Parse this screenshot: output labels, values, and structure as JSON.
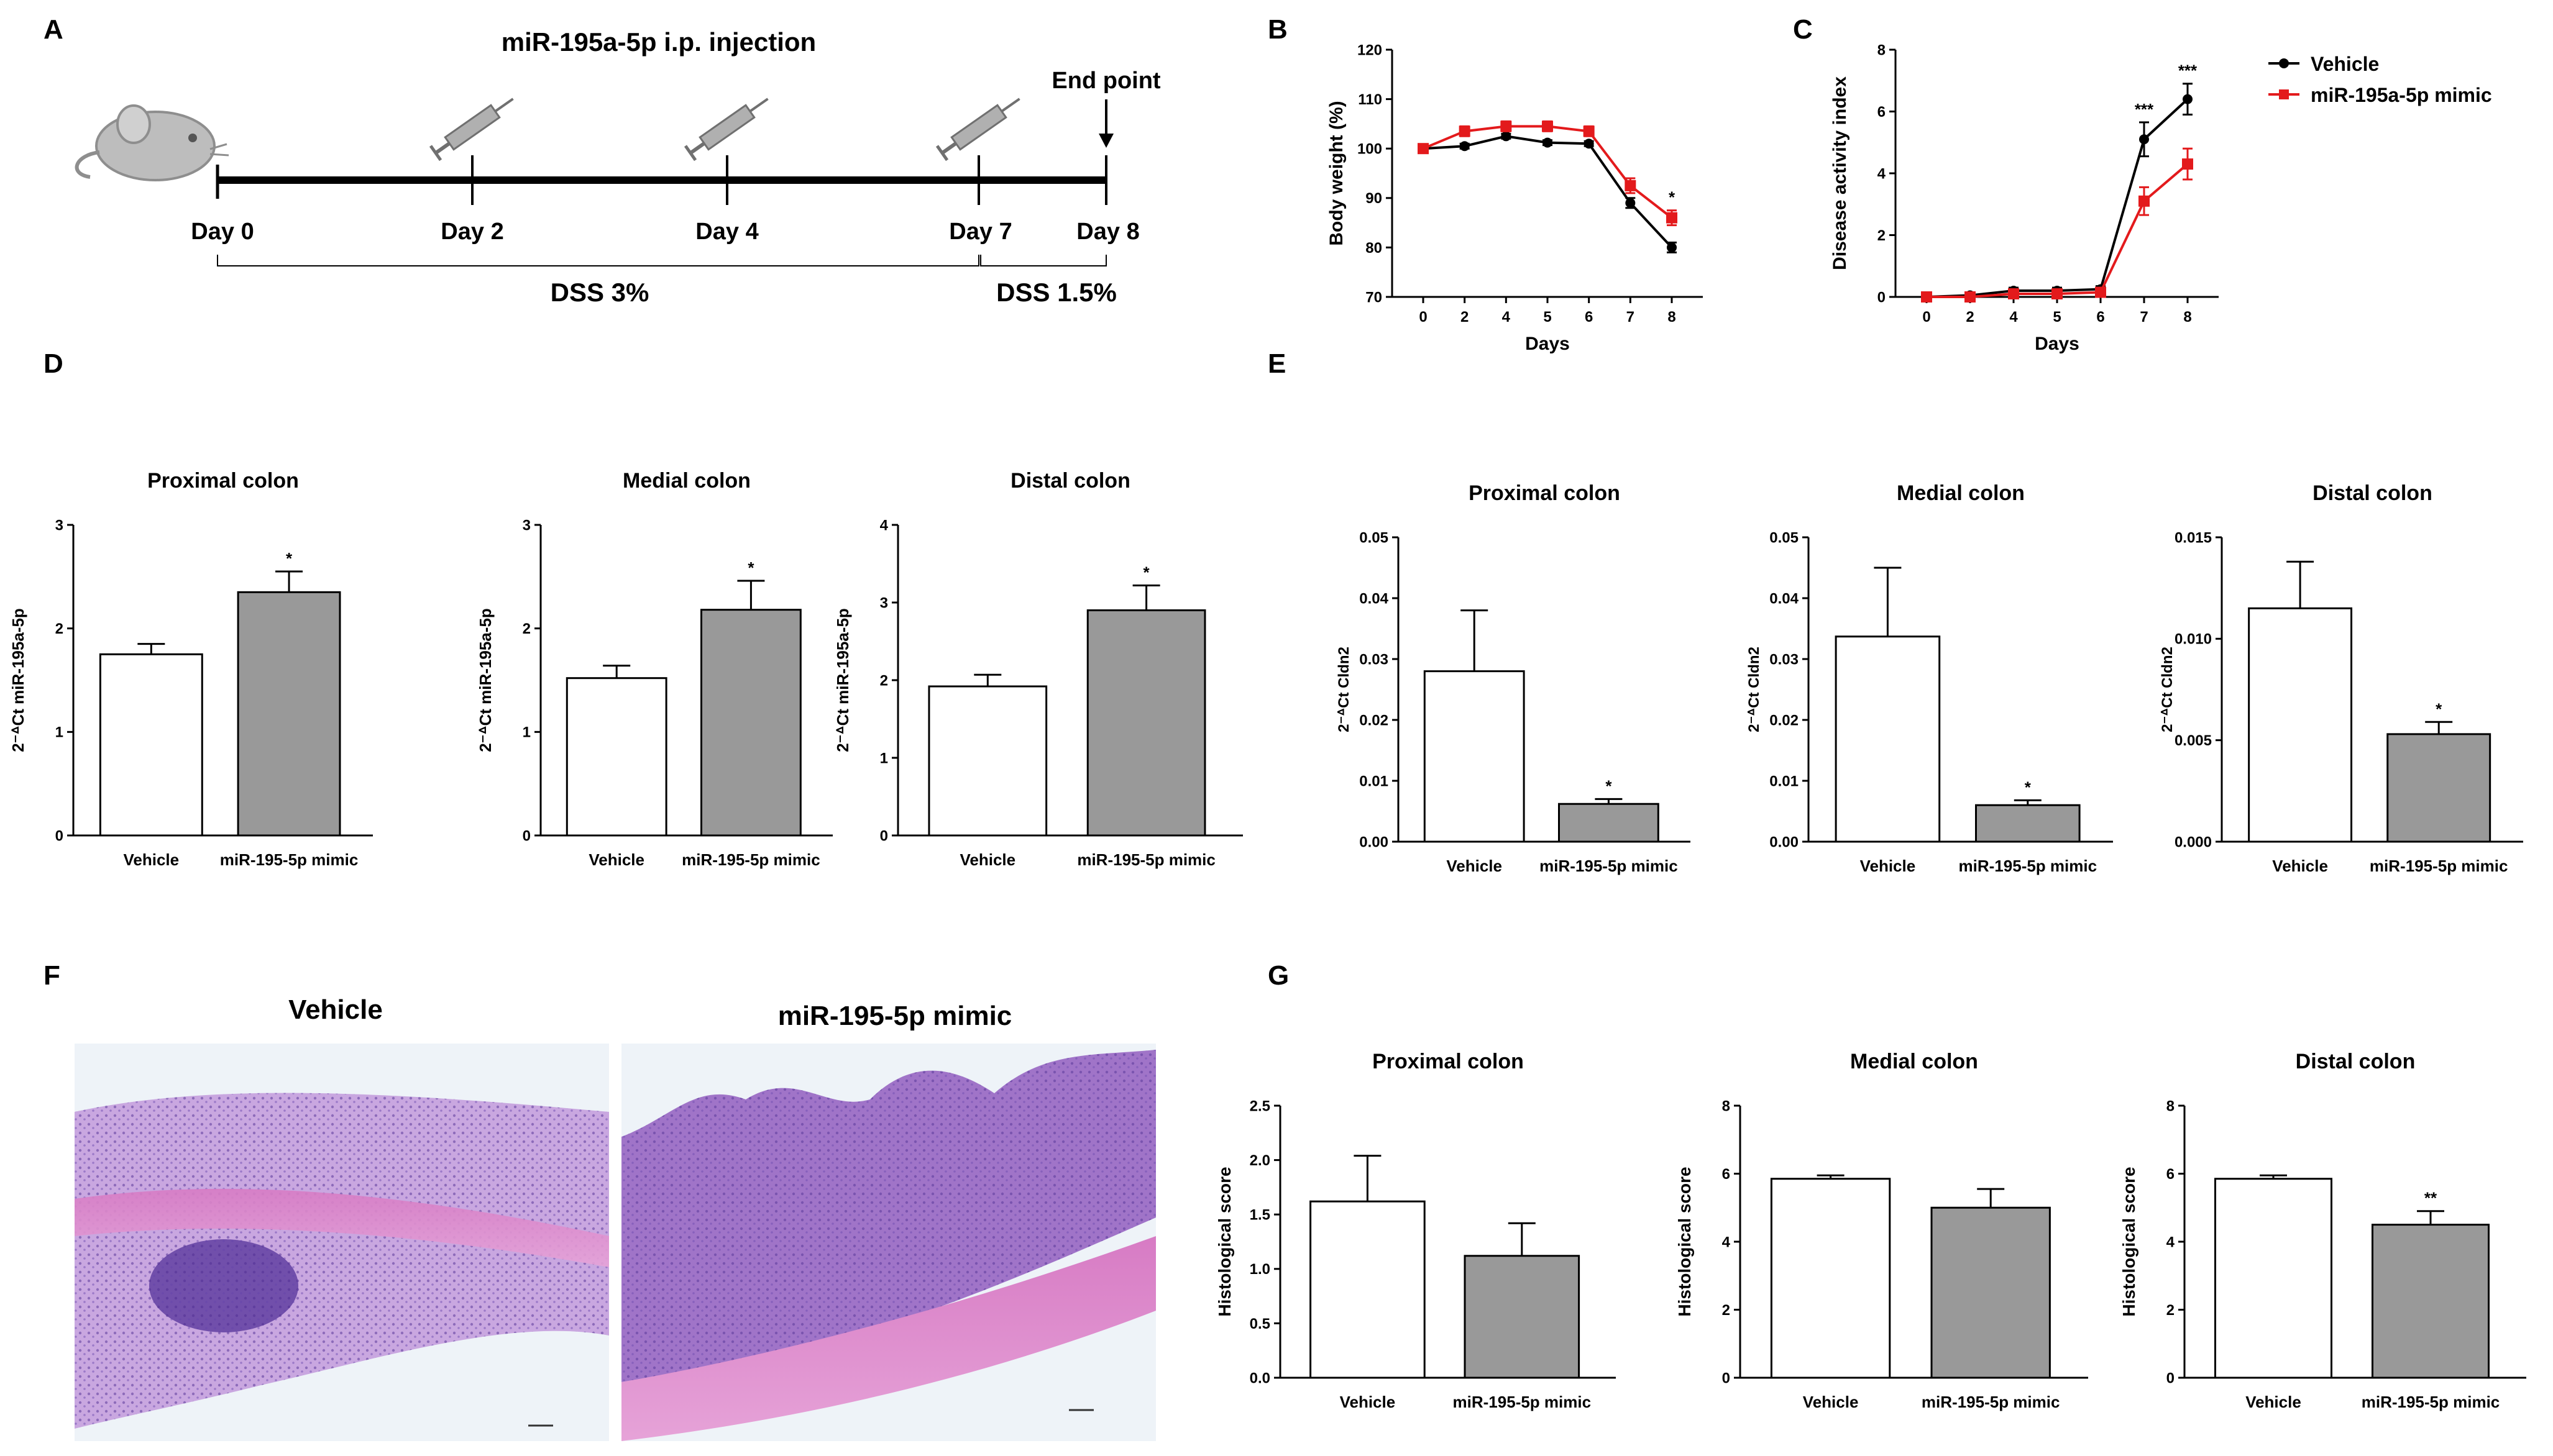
{
  "panels": {
    "A": {
      "label": "A",
      "title": "miR-195a-5p i.p. injection",
      "end_point": "End point",
      "days": [
        "Day 0",
        "Day 2",
        "Day 4",
        "Day 7",
        "Day 8"
      ],
      "dss1": "DSS 3%",
      "dss2": "DSS 1.5%"
    },
    "B": {
      "label": "B"
    },
    "C": {
      "label": "C"
    },
    "D": {
      "label": "D"
    },
    "E": {
      "label": "E"
    },
    "F": {
      "label": "F",
      "img1_title": "Vehicle",
      "img2_title": "miR-195-5p mimic"
    },
    "G": {
      "label": "G"
    }
  },
  "legend": {
    "vehicle": "Vehicle",
    "mimic": "miR-195a-5p mimic"
  },
  "colors": {
    "vehicle": "#000000",
    "mimic": "#e31a1c",
    "bar_gray": "#999999"
  },
  "chart_data": [
    {
      "id": "B",
      "type": "line",
      "xlabel": "Days",
      "ylabel": "Body weight (%)",
      "x": [
        "0",
        "2",
        "4",
        "5",
        "6",
        "7",
        "8"
      ],
      "ylim": [
        70,
        120
      ],
      "yticks": [
        "70",
        "80",
        "90",
        "100",
        "110",
        "120"
      ],
      "series": [
        {
          "name": "Vehicle",
          "values": [
            100,
            100.5,
            102.5,
            101.2,
            101,
            89,
            80
          ],
          "err": [
            0.3,
            0.5,
            0.5,
            0.5,
            0.5,
            1,
            1
          ]
        },
        {
          "name": "miR-195a-5p mimic",
          "values": [
            100,
            103.5,
            104.5,
            104.5,
            103.5,
            92.5,
            86
          ],
          "err": [
            0.3,
            1,
            1,
            1,
            1,
            1.5,
            1.5
          ]
        }
      ],
      "annotations": [
        {
          "xi": 6,
          "text": "*"
        }
      ]
    },
    {
      "id": "C",
      "type": "line",
      "xlabel": "Days",
      "ylabel": "Disease activity index",
      "x": [
        "0",
        "2",
        "4",
        "5",
        "6",
        "7",
        "8"
      ],
      "ylim": [
        0,
        8
      ],
      "yticks": [
        "0",
        "2",
        "4",
        "6",
        "8"
      ],
      "series": [
        {
          "name": "Vehicle",
          "values": [
            0,
            0.05,
            0.2,
            0.2,
            0.25,
            5.1,
            6.4
          ],
          "err": [
            0.05,
            0.05,
            0.1,
            0.1,
            0.1,
            0.55,
            0.5
          ]
        },
        {
          "name": "miR-195a-5p mimic",
          "values": [
            0,
            0,
            0.1,
            0.1,
            0.15,
            3.1,
            4.3
          ],
          "err": [
            0.05,
            0.05,
            0.1,
            0.1,
            0.1,
            0.45,
            0.5
          ]
        }
      ],
      "annotations": [
        {
          "xi": 5,
          "text": "***"
        },
        {
          "xi": 6,
          "text": "***"
        }
      ]
    },
    {
      "id": "D1",
      "type": "bar",
      "title": "Proximal colon",
      "ylabel": "2⁻ᐞCt miR-195a-5p",
      "categories": [
        "Vehicle",
        "miR-195-5p mimic"
      ],
      "values": [
        1.75,
        2.35
      ],
      "errors": [
        0.1,
        0.2
      ],
      "ylim": [
        0,
        3
      ],
      "yticks": [
        "0",
        "1",
        "2",
        "3"
      ],
      "sig": [
        "",
        "*"
      ]
    },
    {
      "id": "D2",
      "type": "bar",
      "title": "Medial colon",
      "ylabel": "2⁻ᐞCt miR-195a-5p",
      "categories": [
        "Vehicle",
        "miR-195-5p mimic"
      ],
      "values": [
        1.52,
        2.18
      ],
      "errors": [
        0.12,
        0.28
      ],
      "ylim": [
        0,
        3
      ],
      "yticks": [
        "0",
        "1",
        "2",
        "3"
      ],
      "sig": [
        "",
        "*"
      ]
    },
    {
      "id": "D3",
      "type": "bar",
      "title": "Distal colon",
      "ylabel": "2⁻ᐞCt miR-195a-5p",
      "categories": [
        "Vehicle",
        "miR-195-5p mimic"
      ],
      "values": [
        1.92,
        2.9
      ],
      "errors": [
        0.15,
        0.32
      ],
      "ylim": [
        0,
        4
      ],
      "yticks": [
        "0",
        "1",
        "2",
        "3",
        "4"
      ],
      "sig": [
        "",
        "*"
      ]
    },
    {
      "id": "E1",
      "type": "bar",
      "title": "Proximal colon",
      "ylabel": "2⁻ᐞCt Cldn2",
      "categories": [
        "Vehicle",
        "miR-195-5p mimic"
      ],
      "values": [
        0.028,
        0.0062
      ],
      "errors": [
        0.01,
        0.0008
      ],
      "ylim": [
        0,
        0.05
      ],
      "yticks": [
        "0.00",
        "0.01",
        "0.02",
        "0.03",
        "0.04",
        "0.05"
      ],
      "sig": [
        "",
        "*"
      ]
    },
    {
      "id": "E2",
      "type": "bar",
      "title": "Medial colon",
      "ylabel": "2⁻ᐞCt Cldn2",
      "categories": [
        "Vehicle",
        "miR-195-5p mimic"
      ],
      "values": [
        0.0337,
        0.006
      ],
      "errors": [
        0.0113,
        0.0008
      ],
      "ylim": [
        0,
        0.05
      ],
      "yticks": [
        "0.00",
        "0.01",
        "0.02",
        "0.03",
        "0.04",
        "0.05"
      ],
      "sig": [
        "",
        "*"
      ]
    },
    {
      "id": "E3",
      "type": "bar",
      "title": "Distal colon",
      "ylabel": "2⁻ᐞCt Cldn2",
      "categories": [
        "Vehicle",
        "miR-195-5p mimic"
      ],
      "values": [
        0.0115,
        0.0053
      ],
      "errors": [
        0.0023,
        0.0006
      ],
      "ylim": [
        0,
        0.015
      ],
      "yticks": [
        "0.000",
        "0.005",
        "0.010",
        "0.015"
      ],
      "sig": [
        "",
        "*"
      ]
    },
    {
      "id": "G1",
      "type": "bar",
      "title": "Proximal colon",
      "ylabel": "Histological score",
      "categories": [
        "Vehicle",
        "miR-195-5p mimic"
      ],
      "values": [
        1.62,
        1.12
      ],
      "errors": [
        0.42,
        0.3
      ],
      "ylim": [
        0,
        2.5
      ],
      "yticks": [
        "0.0",
        "0.5",
        "1.0",
        "1.5",
        "2.0",
        "2.5"
      ],
      "sig": [
        "",
        ""
      ]
    },
    {
      "id": "G2",
      "type": "bar",
      "title": "Medial colon",
      "ylabel": "Histological score",
      "categories": [
        "Vehicle",
        "miR-195-5p mimic"
      ],
      "values": [
        5.85,
        5.0
      ],
      "errors": [
        0.1,
        0.55
      ],
      "ylim": [
        0,
        8
      ],
      "yticks": [
        "0",
        "2",
        "4",
        "6",
        "8"
      ],
      "sig": [
        "",
        ""
      ]
    },
    {
      "id": "G3",
      "type": "bar",
      "title": "Distal colon",
      "ylabel": "Histological score",
      "categories": [
        "Vehicle",
        "miR-195-5p mimic"
      ],
      "values": [
        5.85,
        4.5
      ],
      "errors": [
        0.1,
        0.4
      ],
      "ylim": [
        0,
        8
      ],
      "yticks": [
        "0",
        "2",
        "4",
        "6",
        "8"
      ],
      "sig": [
        "",
        "**"
      ]
    }
  ]
}
